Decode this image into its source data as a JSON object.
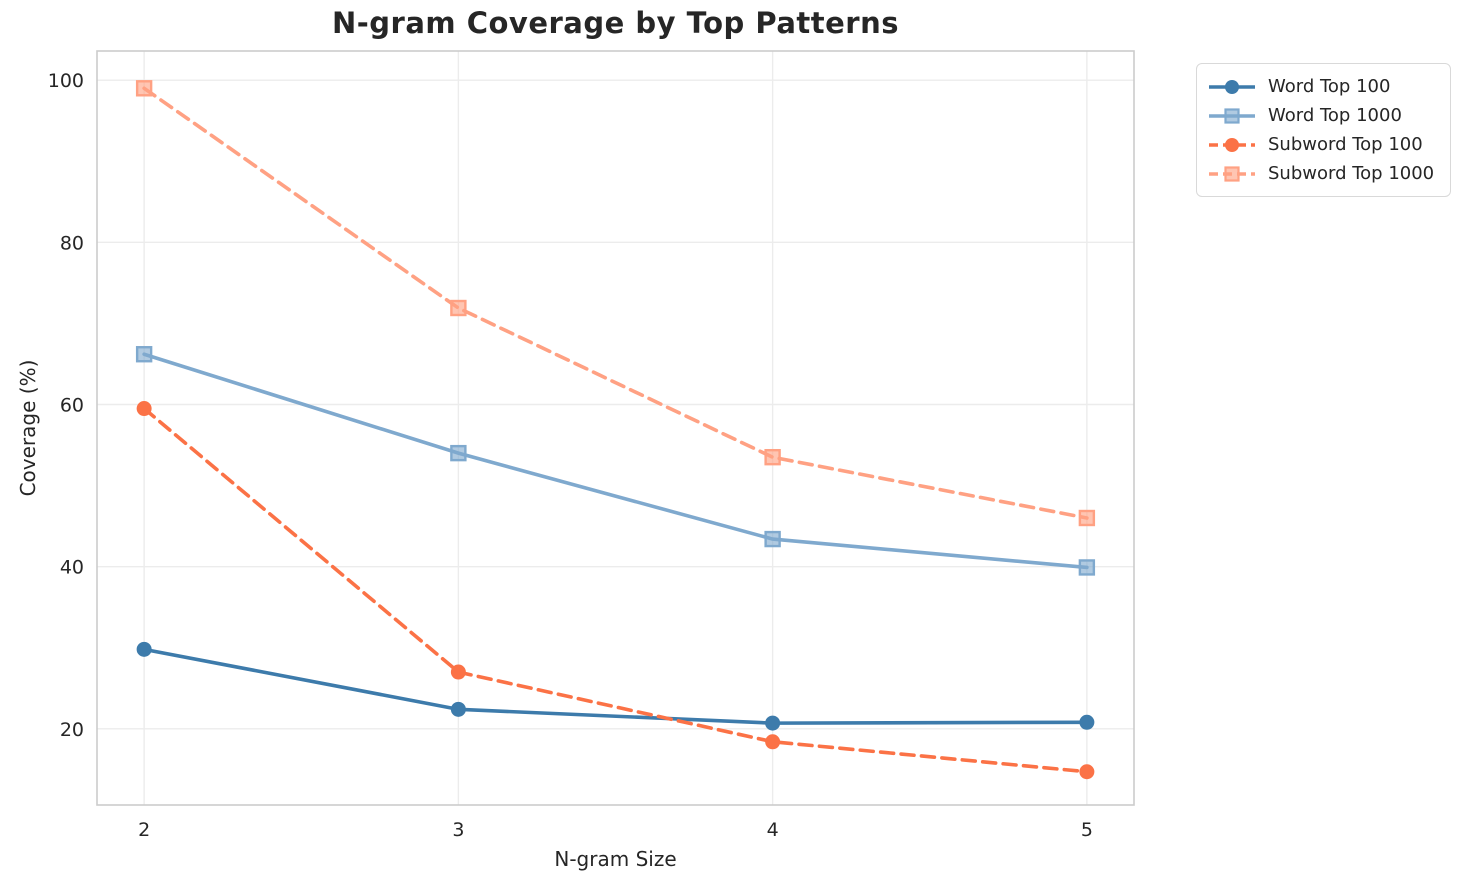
{
  "chart_data": {
    "type": "line",
    "title": "N-gram Coverage by Top Patterns",
    "xlabel": "N-gram Size",
    "ylabel": "Coverage (%)",
    "x": [
      2,
      3,
      4,
      5
    ],
    "xticks": [
      2,
      3,
      4,
      5
    ],
    "yticks": [
      20,
      40,
      60,
      80,
      100
    ],
    "xlim": [
      1.85,
      5.15
    ],
    "ylim": [
      10.6,
      103.6
    ],
    "grid": true,
    "legend_position": "outside-upper-right",
    "series": [
      {
        "name": "Word Top 100",
        "values": [
          29.8,
          22.4,
          20.7,
          20.8
        ],
        "color": "#3d7bab",
        "line_style": "solid",
        "marker": "circle"
      },
      {
        "name": "Word Top 1000",
        "values": [
          66.2,
          54.0,
          43.4,
          39.9
        ],
        "color": "#7fa9ce",
        "line_style": "solid",
        "marker": "square"
      },
      {
        "name": "Subword Top 100",
        "values": [
          59.5,
          27.0,
          18.4,
          14.7
        ],
        "color": "#fb7246",
        "line_style": "dashed",
        "marker": "circle"
      },
      {
        "name": "Subword Top 1000",
        "values": [
          99.0,
          71.9,
          53.5,
          46.0
        ],
        "color": "#ffa183",
        "line_style": "dashed",
        "marker": "square"
      }
    ]
  },
  "style": {
    "grid_color": "#ececec",
    "spine_color": "#cccccc",
    "text_color": "#262626",
    "background": "#ffffff"
  }
}
